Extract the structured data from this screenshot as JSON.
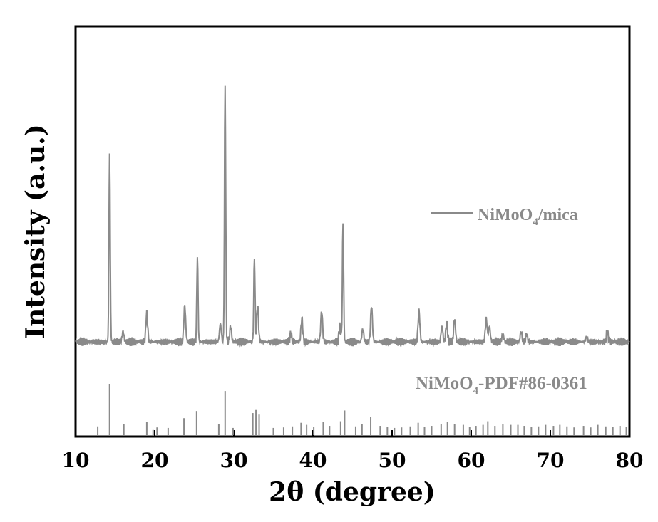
{
  "chart_data": {
    "type": "line",
    "xlabel": "2θ (degree)",
    "ylabel": "Intensity (a.u.)",
    "xlim": [
      10,
      80
    ],
    "x_ticks": [
      "10",
      "20",
      "30",
      "40",
      "50",
      "60",
      "70",
      "80"
    ],
    "y_ticks_shown": false,
    "grid": false,
    "legend_position": "right, mid-height",
    "colors": {
      "axes": "#000000",
      "trace": "#8a8a8a",
      "text_gray": "#8a8a8a"
    },
    "series": [
      {
        "name": "NiMoO4/mica",
        "label_parts": [
          "NiMoO",
          "4",
          "/mica"
        ],
        "baseline": 0.06,
        "peaks": [
          [
            14.3,
            0.73
          ],
          [
            16.0,
            0.04
          ],
          [
            19.0,
            0.11
          ],
          [
            23.8,
            0.14
          ],
          [
            25.4,
            0.33
          ],
          [
            28.3,
            0.07
          ],
          [
            28.9,
            1.0
          ],
          [
            29.6,
            0.06
          ],
          [
            32.6,
            0.33
          ],
          [
            33.0,
            0.14
          ],
          [
            37.2,
            0.03
          ],
          [
            38.6,
            0.09
          ],
          [
            41.1,
            0.12
          ],
          [
            43.4,
            0.06
          ],
          [
            43.8,
            0.46
          ],
          [
            46.3,
            0.05
          ],
          [
            47.4,
            0.14
          ],
          [
            53.4,
            0.12
          ],
          [
            56.3,
            0.06
          ],
          [
            56.9,
            0.07
          ],
          [
            57.9,
            0.09
          ],
          [
            61.9,
            0.09
          ],
          [
            62.3,
            0.06
          ],
          [
            64.0,
            0.03
          ],
          [
            66.3,
            0.04
          ],
          [
            67.0,
            0.03
          ],
          [
            74.6,
            0.02
          ],
          [
            77.2,
            0.04
          ]
        ]
      },
      {
        "name": "NiMoO4-PDF#86-0361",
        "label_parts": [
          "NiMoO",
          "4",
          "-PDF#86-0361"
        ],
        "type": "reference_sticks",
        "sticks": [
          [
            12.8,
            0.17
          ],
          [
            14.3,
            1.0
          ],
          [
            16.1,
            0.22
          ],
          [
            19.0,
            0.26
          ],
          [
            19.8,
            0.1
          ],
          [
            20.3,
            0.15
          ],
          [
            21.7,
            0.14
          ],
          [
            23.7,
            0.33
          ],
          [
            25.3,
            0.47
          ],
          [
            28.1,
            0.22
          ],
          [
            28.9,
            0.86
          ],
          [
            29.9,
            0.14
          ],
          [
            32.4,
            0.43
          ],
          [
            32.8,
            0.49
          ],
          [
            33.2,
            0.4
          ],
          [
            35.0,
            0.14
          ],
          [
            36.3,
            0.15
          ],
          [
            37.4,
            0.17
          ],
          [
            38.5,
            0.24
          ],
          [
            39.2,
            0.2
          ],
          [
            40.1,
            0.16
          ],
          [
            41.3,
            0.25
          ],
          [
            42.1,
            0.18
          ],
          [
            43.5,
            0.27
          ],
          [
            44.0,
            0.48
          ],
          [
            45.4,
            0.17
          ],
          [
            46.2,
            0.22
          ],
          [
            47.3,
            0.36
          ],
          [
            48.5,
            0.18
          ],
          [
            49.4,
            0.16
          ],
          [
            50.3,
            0.14
          ],
          [
            51.2,
            0.15
          ],
          [
            52.3,
            0.17
          ],
          [
            53.3,
            0.24
          ],
          [
            54.1,
            0.16
          ],
          [
            55.0,
            0.18
          ],
          [
            56.2,
            0.22
          ],
          [
            57.0,
            0.26
          ],
          [
            57.9,
            0.22
          ],
          [
            59.0,
            0.2
          ],
          [
            59.8,
            0.16
          ],
          [
            60.6,
            0.18
          ],
          [
            61.5,
            0.2
          ],
          [
            62.1,
            0.27
          ],
          [
            63.0,
            0.18
          ],
          [
            64.0,
            0.22
          ],
          [
            65.0,
            0.2
          ],
          [
            65.9,
            0.2
          ],
          [
            66.7,
            0.18
          ],
          [
            67.6,
            0.16
          ],
          [
            68.5,
            0.17
          ],
          [
            69.4,
            0.2
          ],
          [
            70.4,
            0.18
          ],
          [
            71.2,
            0.2
          ],
          [
            72.1,
            0.17
          ],
          [
            73.0,
            0.15
          ],
          [
            74.2,
            0.18
          ],
          [
            75.1,
            0.15
          ],
          [
            76.0,
            0.2
          ],
          [
            77.0,
            0.17
          ],
          [
            77.9,
            0.16
          ],
          [
            78.8,
            0.18
          ],
          [
            79.6,
            0.16
          ]
        ]
      }
    ]
  }
}
